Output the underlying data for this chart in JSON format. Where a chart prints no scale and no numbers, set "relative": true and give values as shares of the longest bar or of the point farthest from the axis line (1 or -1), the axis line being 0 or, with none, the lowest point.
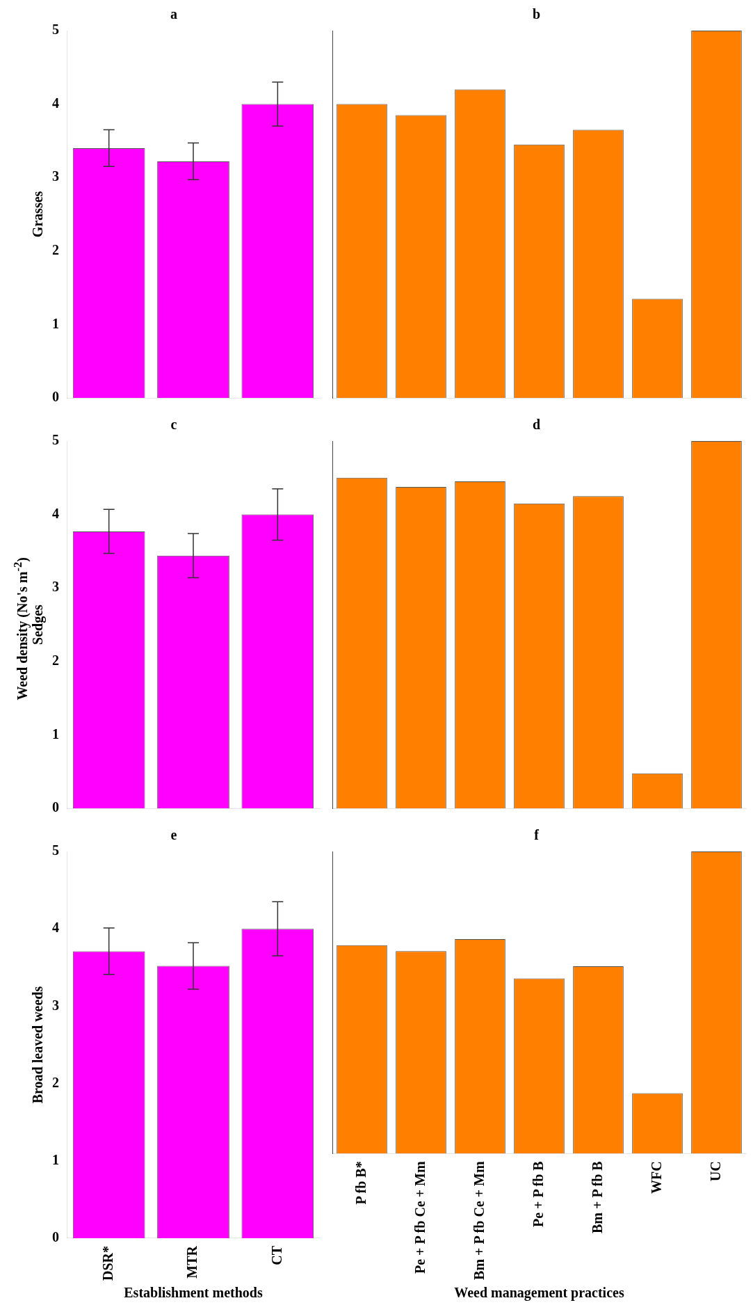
{
  "chart_data": [
    {
      "type": "bar",
      "title": "a",
      "ylabel": "Grasses",
      "annotations": [
        "Weed density (No's m$^{-2}$)"
      ],
      "categories": [
        null,
        null,
        null
      ],
      "values": [
        3.4,
        3.22,
        4.0
      ],
      "errors": [
        0.25,
        0.25,
        0.3
      ],
      "color": "#ff00ff",
      "ylim": [
        0,
        5
      ],
      "yticks": [
        0,
        1,
        2,
        3,
        4,
        5
      ],
      "tick_labels": "y",
      "grid": false,
      "legend": false
    },
    {
      "type": "bar",
      "title": "b",
      "relative": true,
      "categories": [
        null,
        null,
        null,
        null,
        null,
        null,
        null
      ],
      "values": [
        0.8,
        0.77,
        0.84,
        0.69,
        0.73,
        0.27,
        1
      ],
      "color": "#ff8000",
      "tick_labels": false,
      "grid": false,
      "legend": false
    },
    {
      "type": "bar",
      "title": "c",
      "ylabel": "Sedges",
      "categories": [
        null,
        null,
        null
      ],
      "values": [
        3.77,
        3.44,
        4.0
      ],
      "errors": [
        0.3,
        0.3,
        0.35
      ],
      "color": "#ff00ff",
      "ylim": [
        0,
        5
      ],
      "yticks": [
        0,
        1,
        2,
        3,
        4,
        5
      ],
      "tick_labels": "y",
      "grid": false,
      "legend": false
    },
    {
      "type": "bar",
      "title": "d",
      "relative": true,
      "categories": [
        null,
        null,
        null,
        null,
        null,
        null,
        null
      ],
      "values": [
        0.9,
        0.875,
        0.89,
        0.83,
        0.85,
        0.095,
        1
      ],
      "color": "#ff8000",
      "tick_labels": false,
      "grid": false,
      "legend": false
    },
    {
      "type": "bar",
      "title": "e",
      "ylabel": "Broad leaved weeds",
      "xlabel": "Establishment methods",
      "categories": [
        "DSR*",
        "MTR",
        "CT"
      ],
      "values": [
        3.71,
        3.52,
        4.0
      ],
      "errors": [
        0.3,
        0.3,
        0.35
      ],
      "color": "#ff00ff",
      "ylim": [
        0,
        5
      ],
      "yticks": [
        0,
        1,
        2,
        3,
        4,
        5
      ],
      "grid": false,
      "legend": false
    },
    {
      "type": "bar",
      "title": "f",
      "relative": true,
      "xlabel": "Weed management practices",
      "categories": [
        "P fb B*",
        "Pe + P fb Ce + Mm",
        "Bm + P fb Ce + Mm",
        "Pe + P fb B",
        "Bm + P fb B",
        "WFC",
        "UC"
      ],
      "values": [
        0.69,
        0.67,
        0.71,
        0.58,
        0.62,
        0.2,
        1
      ],
      "color": "#ff8000",
      "tick_labels": "x",
      "grid": false,
      "legend": false
    }
  ]
}
